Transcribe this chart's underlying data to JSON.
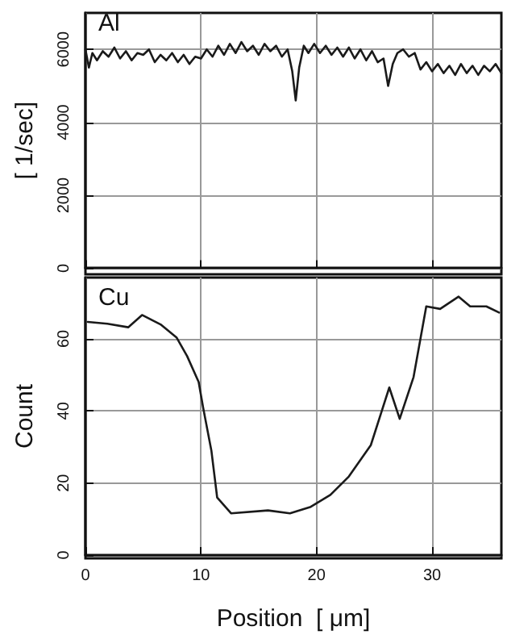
{
  "chart_data": [
    {
      "type": "line",
      "title": "Al",
      "ylabel": "[ 1/sec]",
      "xlim": [
        0,
        36
      ],
      "xticks": [
        0,
        10,
        20,
        30
      ],
      "ylim": [
        0,
        7000
      ],
      "yticks": [
        0,
        2000,
        4000,
        6000
      ],
      "tick_labels": "y",
      "grid": true,
      "marker": "none",
      "line_style": "solid",
      "series": [
        {
          "color": "#1a1a1a",
          "x": [
            0,
            0.3,
            0.6,
            1,
            1.5,
            2,
            2.5,
            3,
            3.5,
            4,
            4.5,
            5,
            5.5,
            6,
            6.5,
            7,
            7.5,
            8,
            8.5,
            9,
            9.5,
            10,
            10.5,
            11,
            11.5,
            12,
            12.5,
            13,
            13.5,
            14,
            14.5,
            15,
            15.5,
            16,
            16.5,
            17,
            17.5,
            17.9,
            18.2,
            18.5,
            18.9,
            19.3,
            19.8,
            20.3,
            20.8,
            21.3,
            21.8,
            22.3,
            22.8,
            23.3,
            23.8,
            24.3,
            24.8,
            25.3,
            25.8,
            26.2,
            26.6,
            27,
            27.5,
            28,
            28.5,
            29,
            29.5,
            30,
            30.5,
            31,
            31.5,
            32,
            32.5,
            33,
            33.5,
            34,
            34.5,
            35,
            35.5,
            36
          ],
          "values": [
            6000,
            5500,
            5900,
            5700,
            5950,
            5800,
            6050,
            5750,
            5950,
            5700,
            5900,
            5850,
            6000,
            5650,
            5850,
            5700,
            5900,
            5650,
            5850,
            5600,
            5800,
            5750,
            6000,
            5800,
            6100,
            5850,
            6150,
            5900,
            6200,
            5950,
            6100,
            5850,
            6150,
            5950,
            6100,
            5800,
            6000,
            5400,
            4600,
            5500,
            6100,
            5900,
            6150,
            5900,
            6100,
            5850,
            6050,
            5800,
            6050,
            5750,
            6000,
            5700,
            5950,
            5650,
            5750,
            5000,
            5600,
            5900,
            6000,
            5800,
            5900,
            5450,
            5650,
            5400,
            5600,
            5350,
            5550,
            5300,
            5600,
            5350,
            5550,
            5300,
            5550,
            5400,
            5600,
            5350
          ]
        }
      ]
    },
    {
      "type": "line",
      "title": "Cu",
      "ylabel": "Count",
      "xlabel": "Position  [ μm]",
      "xlim": [
        0,
        36
      ],
      "xticks": [
        0,
        10,
        20,
        30
      ],
      "ylim": [
        0,
        77
      ],
      "yticks": [
        0,
        20,
        40,
        60
      ],
      "grid": true,
      "marker": "none",
      "line_style": "solid",
      "series": [
        {
          "color": "#1a1a1a",
          "x": [
            0.2,
            1.9,
            3.7,
            4.9,
            6.5,
            7.9,
            8.8,
            9.8,
            10.2,
            10.9,
            11.4,
            12.6,
            15.8,
            17.7,
            19.5,
            21.2,
            22.8,
            24.7,
            26.3,
            27.2,
            28.4,
            29.5,
            30.7,
            32.3,
            33.3,
            34.7,
            35.8
          ],
          "values": [
            64.7,
            64.2,
            63.2,
            66.6,
            64,
            60.3,
            55.2,
            48,
            40.7,
            29,
            16,
            11.6,
            12.4,
            11.6,
            13.4,
            16.7,
            21.8,
            30.5,
            46.5,
            37.8,
            49.4,
            69,
            68.3,
            71.7,
            69,
            69,
            67.3
          ]
        }
      ]
    }
  ]
}
